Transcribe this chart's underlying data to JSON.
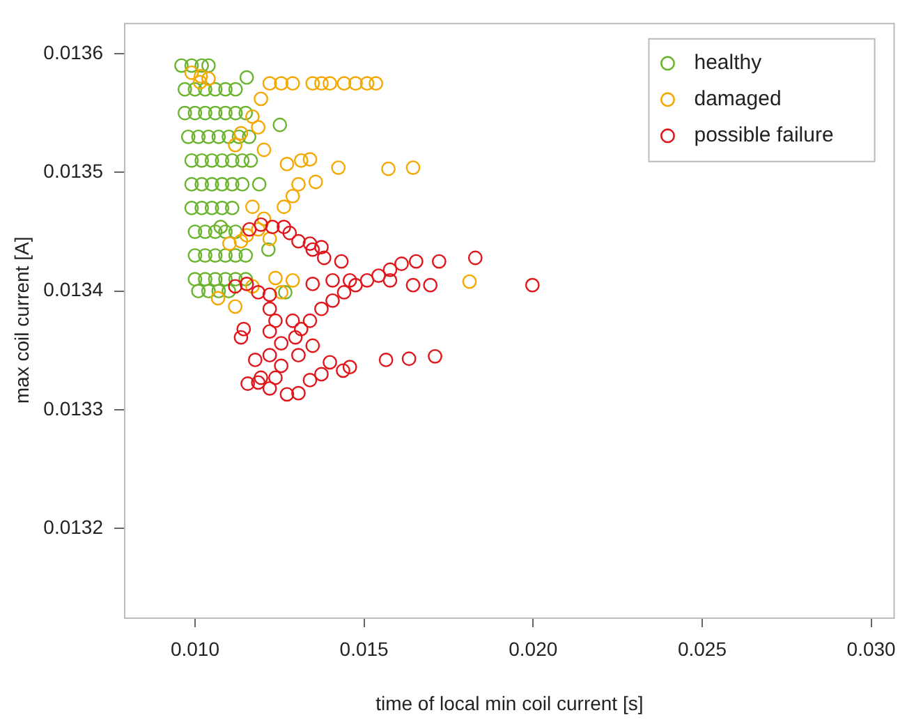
{
  "chart_data": {
    "type": "scatter",
    "xlabel": "time of local min coil current [s]",
    "ylabel": "max coil current [A]",
    "xlim": [
      0.0079,
      0.0307
    ],
    "ylim": [
      0.013125,
      0.013626
    ],
    "xticks": [
      {
        "value": 0.01,
        "label": "0.010"
      },
      0.015,
      {
        "value": 0.02,
        "label": "0.020"
      },
      0.025,
      {
        "value": 0.03,
        "label": "0.030"
      }
    ],
    "yticks": [
      0.0132,
      0.0133,
      0.0134,
      0.0135,
      0.0136
    ],
    "legend": "top right",
    "marker": "circle",
    "series": [
      {
        "name": "healthy",
        "color": "#6ab42d",
        "x": [
          0.0096,
          0.0099,
          0.0102,
          0.0104,
          0.0097,
          0.01,
          0.0103,
          0.0106,
          0.0109,
          0.0112,
          0.0097,
          0.01,
          0.0103,
          0.0106,
          0.0109,
          0.0112,
          0.0115,
          0.0098,
          0.0101,
          0.0104,
          0.0107,
          0.011,
          0.0113,
          0.0116,
          0.0099,
          0.0102,
          0.0105,
          0.0108,
          0.0111,
          0.0114,
          0.0099,
          0.0102,
          0.0105,
          0.0108,
          0.0111,
          0.0114,
          0.0099,
          0.0102,
          0.0105,
          0.0108,
          0.0111,
          0.01,
          0.0103,
          0.0106,
          0.0109,
          0.0112,
          0.01,
          0.0103,
          0.0106,
          0.0109,
          0.0112,
          0.0115,
          0.01,
          0.0103,
          0.0106,
          0.0109,
          0.0112,
          0.0115,
          0.0101,
          0.0104,
          0.0107,
          0.011,
          0.01153,
          0.01251,
          0.01165,
          0.0119,
          0.01076,
          0.01217,
          0.01267
        ],
        "values": [
          0.01359,
          0.01359,
          0.01359,
          0.01359,
          0.01357,
          0.01357,
          0.01357,
          0.01357,
          0.01357,
          0.01357,
          0.01355,
          0.01355,
          0.01355,
          0.01355,
          0.01355,
          0.01355,
          0.01355,
          0.01353,
          0.01353,
          0.01353,
          0.01353,
          0.01353,
          0.01353,
          0.01353,
          0.01351,
          0.01351,
          0.01351,
          0.01351,
          0.01351,
          0.01351,
          0.01349,
          0.01349,
          0.01349,
          0.01349,
          0.01349,
          0.01349,
          0.01347,
          0.01347,
          0.01347,
          0.01347,
          0.01347,
          0.01345,
          0.01345,
          0.01345,
          0.01345,
          0.01345,
          0.01343,
          0.01343,
          0.01343,
          0.01343,
          0.01343,
          0.01343,
          0.01341,
          0.01341,
          0.01341,
          0.01341,
          0.01341,
          0.01341,
          0.0134,
          0.0134,
          0.0134,
          0.0134,
          0.01358,
          0.01354,
          0.01351,
          0.01349,
          0.013454,
          0.013435,
          0.013399
        ]
      },
      {
        "name": "damaged",
        "color": "#f5a800",
        "x": [
          0.01017,
          0.0099,
          0.0104,
          0.01015,
          0.01221,
          0.01255,
          0.01289,
          0.01348,
          0.01374,
          0.01399,
          0.01441,
          0.01475,
          0.01509,
          0.01535,
          0.01195,
          0.0117,
          0.01136,
          0.01119,
          0.01204,
          0.01187,
          0.01272,
          0.01314,
          0.0134,
          0.01306,
          0.01289,
          0.01357,
          0.01424,
          0.01572,
          0.01645,
          0.01263,
          0.0117,
          0.01204,
          0.01153,
          0.01187,
          0.01221,
          0.01136,
          0.01102,
          0.01238,
          0.01289,
          0.01255,
          0.01119,
          0.01068,
          0.01812,
          0.0117
        ],
        "values": [
          0.013581,
          0.013584,
          0.013579,
          0.013576,
          0.013575,
          0.013575,
          0.013575,
          0.013575,
          0.013575,
          0.013575,
          0.013575,
          0.013575,
          0.013575,
          0.013575,
          0.013562,
          0.013547,
          0.013533,
          0.013523,
          0.013519,
          0.013538,
          0.013507,
          0.01351,
          0.013511,
          0.01349,
          0.01348,
          0.013492,
          0.013504,
          0.013503,
          0.013504,
          0.013471,
          0.013471,
          0.013461,
          0.013447,
          0.013452,
          0.013444,
          0.013442,
          0.01344,
          0.013411,
          0.013409,
          0.013399,
          0.013387,
          0.013394,
          0.013408,
          0.013404
        ]
      },
      {
        "name": "possible failure",
        "color": "#e0161b",
        "x": [
          0.01161,
          0.01195,
          0.01229,
          0.01263,
          0.0128,
          0.01306,
          0.0134,
          0.01374,
          0.01382,
          0.01433,
          0.01348,
          0.01654,
          0.01722,
          0.01829,
          0.01611,
          0.01577,
          0.01543,
          0.01577,
          0.01645,
          0.01696,
          0.01998,
          0.01509,
          0.01475,
          0.01441,
          0.01407,
          0.01374,
          0.0134,
          0.01314,
          0.01297,
          0.01289,
          0.01348,
          0.01407,
          0.01458,
          0.01119,
          0.01153,
          0.01187,
          0.01221,
          0.01221,
          0.01238,
          0.01221,
          0.01255,
          0.01221,
          0.01255,
          0.01238,
          0.01221,
          0.01272,
          0.01306,
          0.01195,
          0.01144,
          0.01136,
          0.01178,
          0.01156,
          0.01187,
          0.0134,
          0.01374,
          0.01399,
          0.01438,
          0.01458,
          0.01306,
          0.01348,
          0.01565,
          0.01633,
          0.0171
        ],
        "values": [
          0.013452,
          0.013456,
          0.013454,
          0.013454,
          0.013449,
          0.013442,
          0.01344,
          0.013437,
          0.013428,
          0.013425,
          0.013435,
          0.013425,
          0.013425,
          0.013428,
          0.013423,
          0.013418,
          0.013413,
          0.013409,
          0.013405,
          0.013405,
          0.013405,
          0.013409,
          0.013405,
          0.013399,
          0.013392,
          0.013385,
          0.013375,
          0.013368,
          0.013361,
          0.013375,
          0.013406,
          0.013409,
          0.013409,
          0.013404,
          0.013406,
          0.013399,
          0.013397,
          0.013385,
          0.013375,
          0.013366,
          0.013356,
          0.013346,
          0.013337,
          0.013327,
          0.013318,
          0.013313,
          0.013314,
          0.013327,
          0.013368,
          0.013361,
          0.013342,
          0.013322,
          0.013323,
          0.013325,
          0.01333,
          0.01334,
          0.013333,
          0.013336,
          0.013346,
          0.013354,
          0.013342,
          0.013343,
          0.013345
        ]
      }
    ]
  }
}
